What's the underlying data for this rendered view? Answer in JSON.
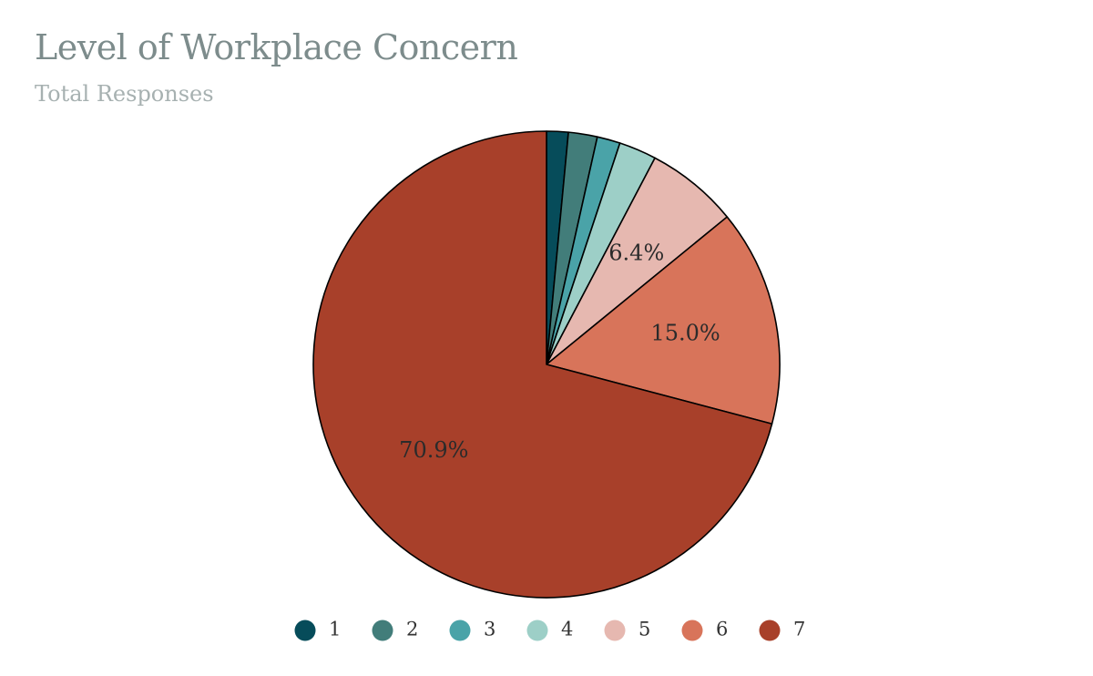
{
  "chart_data": {
    "type": "pie",
    "title": "Level of Workplace Concern",
    "subtitle": "Total Responses",
    "categories": [
      "1",
      "2",
      "3",
      "4",
      "5",
      "6",
      "7"
    ],
    "values": [
      1.5,
      2.0,
      1.6,
      2.6,
      6.4,
      15.0,
      70.9
    ],
    "colors": [
      "#064c5a",
      "#427d7a",
      "#4aa3a8",
      "#9dcfc7",
      "#e6b8b0",
      "#d8745a",
      "#a8402a"
    ],
    "data_labels": [
      "",
      "",
      "",
      "",
      "6.4%",
      "15.0%",
      "70.9%"
    ],
    "legend_position": "bottom"
  }
}
